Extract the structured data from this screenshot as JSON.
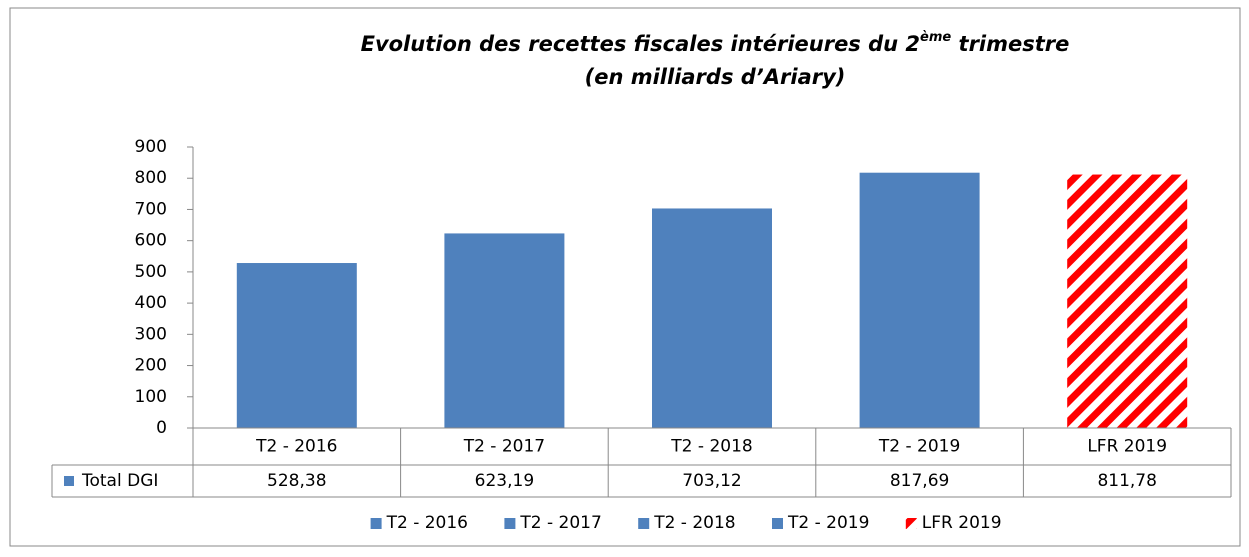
{
  "chart_data": {
    "type": "bar",
    "title_parts": [
      "Evolution des recettes fiscales  intérieures du 2",
      "ème",
      " trimestre"
    ],
    "subtitle": "(en milliards d’Ariary)",
    "categories": [
      "T2 - 2016",
      "T2 - 2017",
      "T2 - 2018",
      "T2 - 2019",
      "LFR 2019"
    ],
    "series": [
      {
        "name": "Total DGI",
        "color": "#4f81bd",
        "values": [
          528.38,
          623.19,
          703.12,
          817.69,
          811.78
        ],
        "value_labels": [
          "528,38",
          "623,19",
          "703,12",
          "817,69",
          "811,78"
        ]
      }
    ],
    "point_colors": [
      "#4f81bd",
      "#4f81bd",
      "#4f81bd",
      "#4f81bd",
      "#ff0000"
    ],
    "point_styles": [
      "solid",
      "solid",
      "solid",
      "solid",
      "hatch"
    ],
    "ylim": [
      0,
      900
    ],
    "yticks": [
      0,
      100,
      200,
      300,
      400,
      500,
      600,
      700,
      800,
      900
    ],
    "grid": false,
    "data_table": true,
    "legend": "bottom"
  }
}
